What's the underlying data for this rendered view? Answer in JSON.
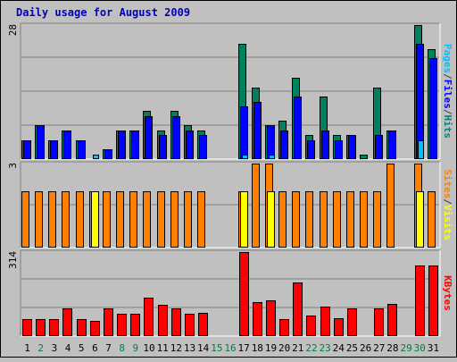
{
  "chart_data": [
    {
      "type": "bar",
      "title": "Daily usage for August 2009",
      "categories": [
        "1",
        "2",
        "3",
        "4",
        "5",
        "6",
        "7",
        "8",
        "9",
        "10",
        "11",
        "12",
        "13",
        "14",
        "15",
        "16",
        "17",
        "18",
        "19",
        "20",
        "21",
        "22",
        "23",
        "24",
        "25",
        "26",
        "27",
        "28",
        "29",
        "30",
        "31"
      ],
      "weekend_days": [
        "2",
        "8",
        "9",
        "15",
        "16",
        "22",
        "23",
        "29",
        "30"
      ],
      "ylim": [
        0,
        28
      ],
      "max_label": "28",
      "axis_label_parts": [
        {
          "text": "Pages",
          "color": "#00c0ff"
        },
        {
          "text": "/",
          "color": "#404040"
        },
        {
          "text": "Files",
          "color": "#0000ff"
        },
        {
          "text": "/",
          "color": "#404040"
        },
        {
          "text": "Hits",
          "color": "#008080"
        }
      ],
      "series": [
        {
          "name": "Hits",
          "color": "#00805c",
          "values": [
            4,
            7,
            4,
            6,
            4,
            0,
            2,
            6,
            6,
            10,
            6,
            10,
            7,
            6,
            0,
            0,
            24,
            15,
            7,
            8,
            17,
            5,
            13,
            5,
            5,
            1,
            15,
            6,
            0,
            28,
            23
          ]
        },
        {
          "name": "Files",
          "color": "#0000ff",
          "values": [
            4,
            7,
            4,
            6,
            4,
            0,
            2,
            6,
            6,
            9,
            5,
            9,
            6,
            5,
            0,
            0,
            11,
            12,
            7,
            6,
            13,
            4,
            6,
            4,
            5,
            0,
            5,
            6,
            0,
            24,
            21
          ]
        },
        {
          "name": "Pages",
          "color": "#00c0ff",
          "values": [
            0,
            0,
            0,
            0,
            0,
            1,
            0,
            0,
            0,
            0,
            0,
            0,
            0,
            0,
            0,
            0,
            1,
            0,
            1,
            0,
            0,
            0,
            0,
            0,
            0,
            0,
            0,
            0,
            0,
            4,
            0
          ]
        }
      ]
    },
    {
      "type": "bar",
      "ylim": [
        0,
        3
      ],
      "max_label": "3",
      "axis_label_parts": [
        {
          "text": "Sites",
          "color": "#ff8000"
        },
        {
          "text": "/",
          "color": "#404040"
        },
        {
          "text": "Visits",
          "color": "#ffff00"
        }
      ],
      "series": [
        {
          "name": "Visits",
          "color": "#ffff00",
          "values": [
            0,
            0,
            0,
            0,
            0,
            2,
            0,
            0,
            0,
            0,
            0,
            0,
            0,
            0,
            0,
            0,
            2,
            0,
            2,
            0,
            0,
            0,
            0,
            0,
            0,
            0,
            0,
            0,
            0,
            2,
            0
          ]
        },
        {
          "name": "Sites",
          "color": "#ff8000",
          "values": [
            2,
            2,
            2,
            2,
            2,
            2,
            2,
            2,
            2,
            2,
            2,
            2,
            2,
            2,
            0,
            0,
            2,
            3,
            3,
            2,
            2,
            2,
            2,
            2,
            2,
            2,
            2,
            3,
            0,
            3,
            2
          ]
        }
      ]
    },
    {
      "type": "bar",
      "ylim": [
        0,
        314
      ],
      "max_label": "314",
      "axis_label_parts": [
        {
          "text": "KBytes",
          "color": "#ff0000"
        }
      ],
      "series": [
        {
          "name": "KBytes",
          "color": "#ff0000",
          "values": [
            64,
            64,
            64,
            104,
            64,
            56,
            104,
            84,
            84,
            144,
            116,
            104,
            84,
            88,
            0,
            0,
            314,
            126,
            134,
            64,
            200,
            78,
            110,
            66,
            104,
            0,
            104,
            120,
            0,
            264,
            264
          ]
        }
      ]
    }
  ]
}
